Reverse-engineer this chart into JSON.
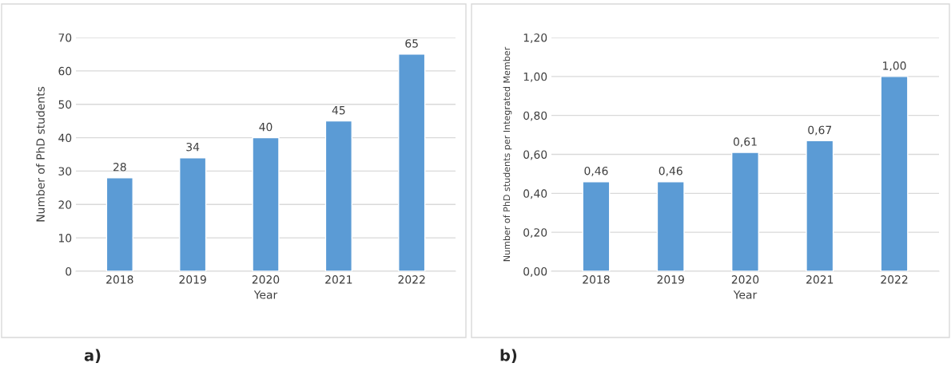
{
  "chart_data": [
    {
      "type": "bar",
      "xlabel": "Year",
      "ylabel": "Number of PhD students",
      "categories": [
        "2018",
        "2019",
        "2020",
        "2021",
        "2022"
      ],
      "values": [
        28,
        34,
        40,
        45,
        65
      ],
      "color": "#5b9bd5",
      "data_labels": true,
      "ylim": [
        0,
        70
      ],
      "yticks": [
        0,
        10,
        20,
        30,
        40,
        50,
        60,
        70
      ],
      "grid": "y",
      "annotations": [
        "a)"
      ]
    },
    {
      "type": "bar",
      "xlabel": "Year",
      "ylabel": "Number of PhD students per Integrated Member",
      "categories": [
        "2018",
        "2019",
        "2020",
        "2021",
        "2022"
      ],
      "values": [
        0.46,
        0.46,
        0.61,
        0.67,
        1.0
      ],
      "color": "#5b9bd5",
      "value_labels": [
        "0,46",
        "0,46",
        "0,61",
        "0,67",
        "1,00"
      ],
      "ylim": [
        0,
        1.2
      ],
      "yticks": [
        {
          "value": 0,
          "label": "0,00"
        },
        {
          "value": 0.2,
          "label": "0,20"
        },
        {
          "value": 0.4,
          "label": "0,40"
        },
        {
          "value": 0.6,
          "label": "0,60"
        },
        {
          "value": 0.8,
          "label": "0,80"
        },
        {
          "value": 1.0,
          "label": "1,00"
        },
        {
          "value": 1.2,
          "label": "1,20"
        }
      ],
      "grid": "y",
      "annotations": [
        "b)"
      ]
    }
  ]
}
